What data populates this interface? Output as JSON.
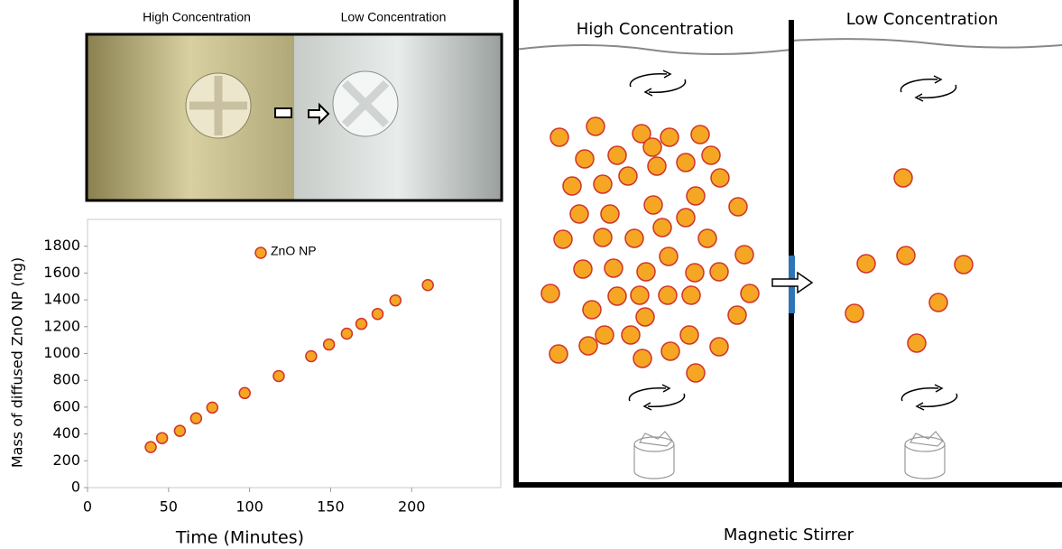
{
  "chart_data": {
    "type": "scatter",
    "x_label": "Time (Minutes)",
    "y_label": "Mass of diffused ZnO NP (ng)",
    "series": [
      {
        "name": "ZnO NP",
        "color": "#f5a623",
        "x": [
          39,
          46,
          57,
          67,
          77,
          97,
          118,
          138,
          149,
          160,
          169,
          179,
          190,
          210
        ],
        "values": [
          302,
          369,
          423,
          517,
          597,
          705,
          832,
          980,
          1067,
          1148,
          1221,
          1295,
          1396,
          1510
        ]
      }
    ],
    "xlim": [
      0,
      255
    ],
    "xticks": [
      0,
      50,
      100,
      150,
      200
    ],
    "ylim": [
      0,
      2000
    ],
    "yticks": [
      0,
      200,
      400,
      600,
      800,
      1000,
      1200,
      1400,
      1600,
      1800
    ]
  },
  "photo": {
    "left_label": "High Concentration",
    "right_label": "Low Concentration"
  },
  "diagram": {
    "left_label": "High Concentration",
    "right_label": "Low Concentration",
    "caption": "Magnetic Stirrer"
  }
}
